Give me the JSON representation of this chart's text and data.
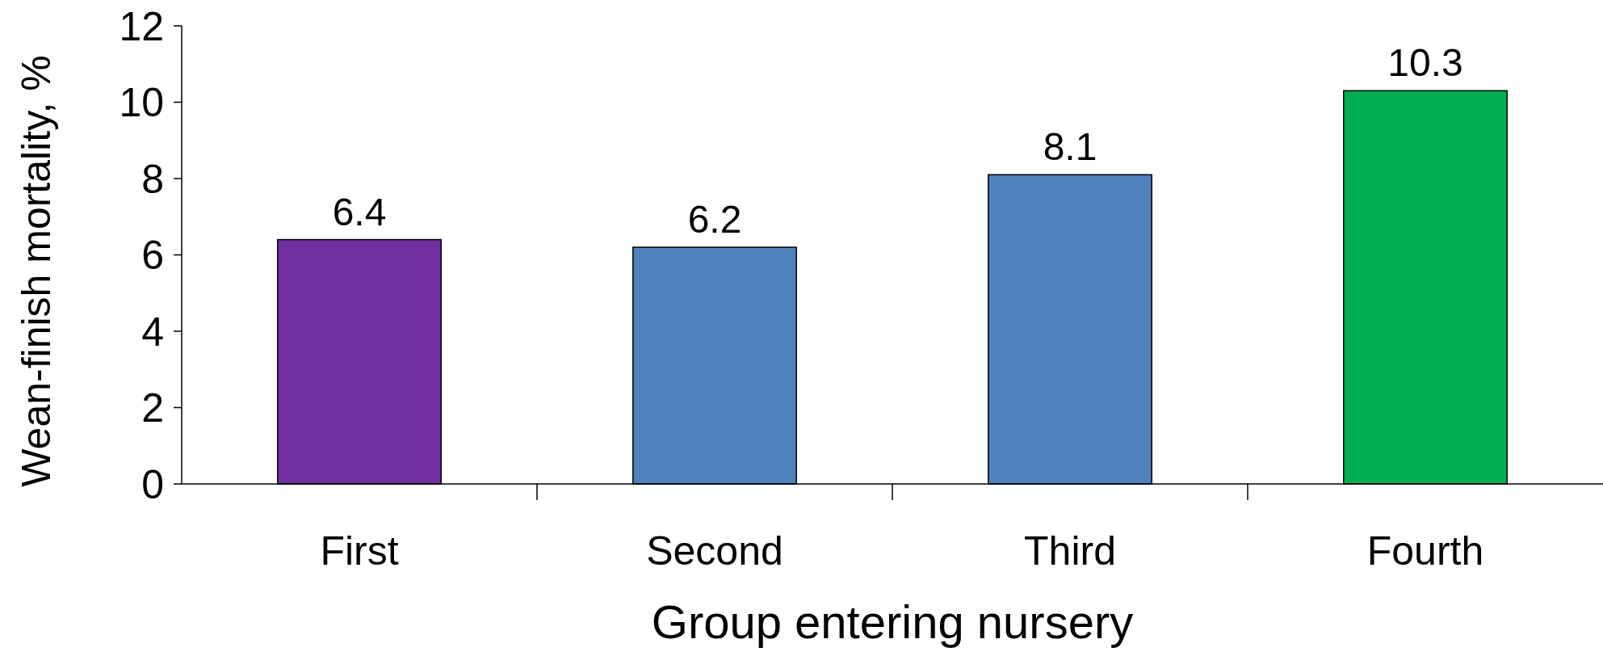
{
  "chart_data": {
    "type": "bar",
    "xlabel": "Group entering nursery",
    "ylabel": "Wean-finish mortality, %",
    "categories": [
      "First",
      "Second",
      "Third",
      "Fourth"
    ],
    "values": [
      6.4,
      6.2,
      8.1,
      10.3
    ],
    "colors": [
      "#7030a0",
      "#4f81bd",
      "#4f81bd",
      "#00b050"
    ],
    "ylim": [
      0,
      12
    ],
    "yticks": [
      0,
      2,
      4,
      6,
      8,
      10,
      12
    ],
    "grid": false,
    "data_labels": true
  }
}
